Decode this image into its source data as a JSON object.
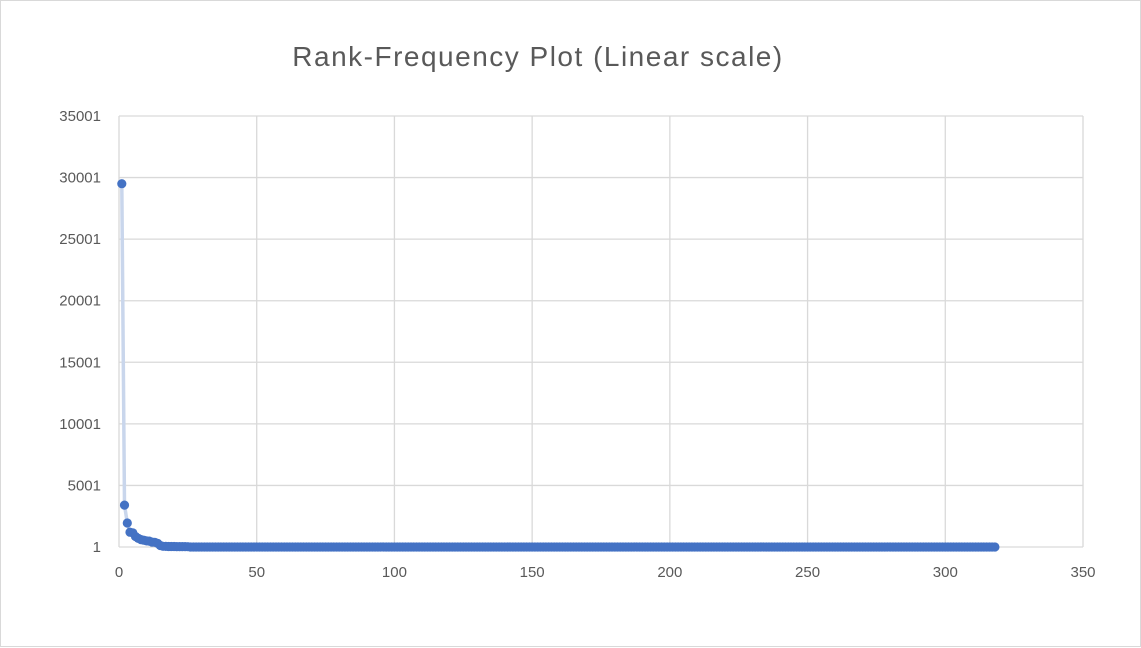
{
  "chart_data": {
    "type": "scatter",
    "title": "Rank-Frequency Plot (Linear scale)",
    "xlabel": "",
    "ylabel": "",
    "xlim": [
      0,
      350
    ],
    "ylim": [
      1,
      35001
    ],
    "x_ticks": [
      0,
      50,
      100,
      150,
      200,
      250,
      300,
      350
    ],
    "y_ticks": [
      1,
      5001,
      10001,
      15001,
      20001,
      25001,
      30001,
      35001
    ],
    "grid": true,
    "legend": "none",
    "marker_color": "#4472c4",
    "line_color": "#c9d6ec",
    "series": [
      {
        "x": [
          1,
          2,
          3,
          4,
          5,
          6,
          7,
          8,
          9,
          10,
          11,
          12,
          13,
          14,
          15,
          16,
          17,
          18,
          19,
          20,
          21,
          22,
          23,
          24,
          25
        ],
        "y": [
          29500,
          3400,
          1950,
          1200,
          1150,
          850,
          700,
          600,
          550,
          500,
          480,
          400,
          380,
          300,
          120,
          60,
          50,
          45,
          40,
          38,
          35,
          33,
          31,
          30,
          28
        ],
        "tail": {
          "x_start": 26,
          "x_end": 318,
          "y": 5
        }
      }
    ]
  }
}
